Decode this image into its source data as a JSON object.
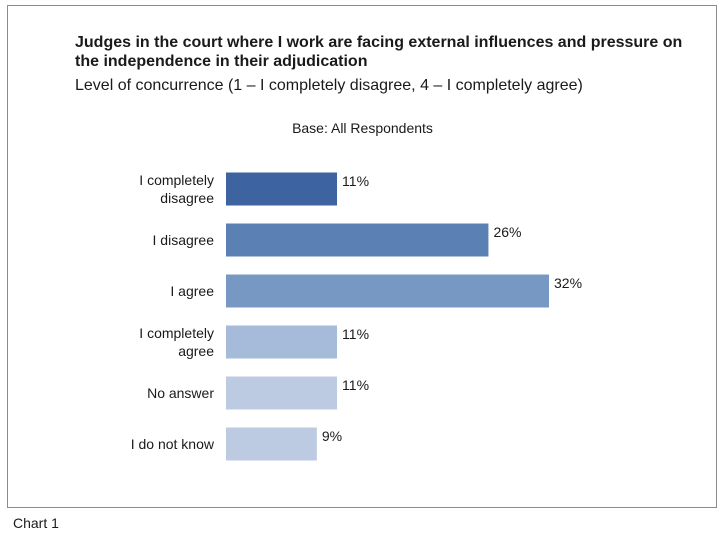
{
  "title": "Judges in the court where I work are facing external influences and pressure on the independence in their adjudication",
  "subtitle": "Level of concurrence (1 – I completely disagree,  4 – I completely agree)",
  "base_note": "Base: All Respondents",
  "footer": "Chart 1",
  "chart_data": {
    "type": "bar",
    "orientation": "horizontal",
    "categories": [
      "I completely disagree",
      "I disagree",
      "I agree",
      "I completely agree",
      "No answer",
      "I do not know"
    ],
    "category_lines": [
      [
        "I completely",
        "disagree"
      ],
      [
        "I disagree"
      ],
      [
        "I agree"
      ],
      [
        "I completely",
        "agree"
      ],
      [
        "No answer"
      ],
      [
        "I do not know"
      ]
    ],
    "values": [
      11,
      26,
      32,
      11,
      11,
      9
    ],
    "value_labels": [
      "11%",
      "26%",
      "32%",
      "11%",
      "11%",
      "9%"
    ],
    "colors": [
      "#3d64a0",
      "#5a80b4",
      "#7898c4",
      "#a6bbd9",
      "#bccbe2",
      "#bccbe2"
    ],
    "xlim": [
      0,
      32
    ],
    "grid": false,
    "legend": "none"
  }
}
